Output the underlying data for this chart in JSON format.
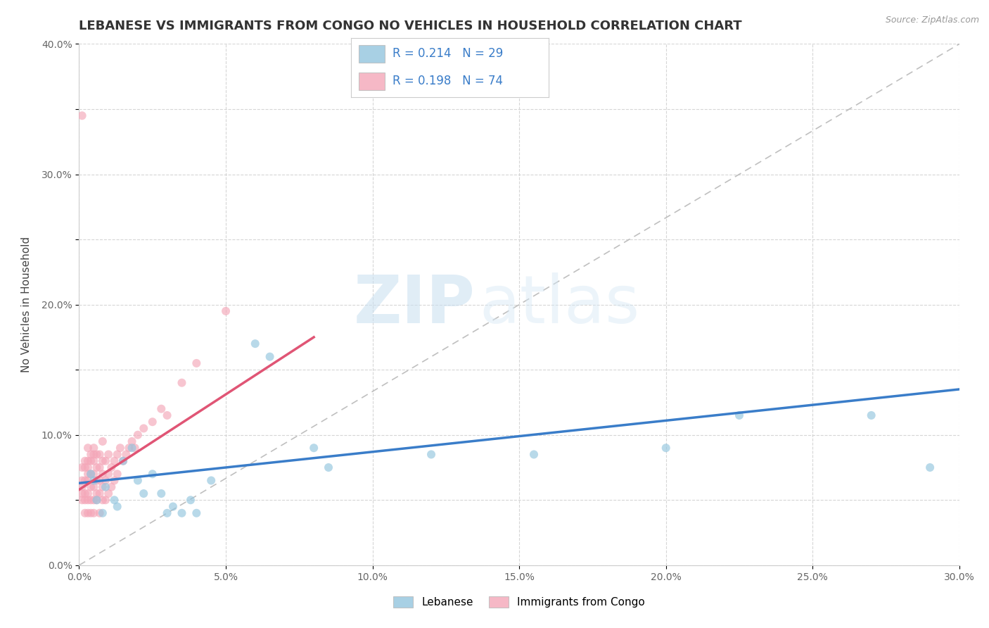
{
  "title": "LEBANESE VS IMMIGRANTS FROM CONGO NO VEHICLES IN HOUSEHOLD CORRELATION CHART",
  "source": "Source: ZipAtlas.com",
  "ylabel": "No Vehicles in Household",
  "xlim": [
    0.0,
    0.3
  ],
  "ylim": [
    0.0,
    0.4
  ],
  "xticks": [
    0.0,
    0.05,
    0.1,
    0.15,
    0.2,
    0.25,
    0.3
  ],
  "yticks": [
    0.0,
    0.05,
    0.1,
    0.15,
    0.2,
    0.25,
    0.3,
    0.35,
    0.4
  ],
  "xtick_labels": [
    "0.0%",
    "5.0%",
    "10.0%",
    "15.0%",
    "20.0%",
    "25.0%",
    "30.0%"
  ],
  "ytick_labels": [
    "0.0%",
    "",
    "10.0%",
    "",
    "20.0%",
    "",
    "30.0%",
    "",
    "40.0%"
  ],
  "grid_color": "#cccccc",
  "background_color": "#ffffff",
  "legend_label_blue": "Lebanese",
  "legend_label_pink": "Immigrants from Congo",
  "R_blue": 0.214,
  "N_blue": 29,
  "R_pink": 0.198,
  "N_pink": 74,
  "blue_color": "#92c5de",
  "pink_color": "#f4a6b8",
  "blue_line_color": "#3a7dc9",
  "pink_line_color": "#e05575",
  "watermark_zip": "ZIP",
  "watermark_atlas": "atlas",
  "title_fontsize": 13,
  "axis_label_fontsize": 11,
  "tick_fontsize": 10,
  "scatter_alpha": 0.65,
  "scatter_size": 75,
  "blue_scatter_x": [
    0.004,
    0.005,
    0.006,
    0.008,
    0.009,
    0.012,
    0.013,
    0.015,
    0.018,
    0.02,
    0.022,
    0.025,
    0.028,
    0.03,
    0.032,
    0.035,
    0.038,
    0.04,
    0.045,
    0.06,
    0.065,
    0.08,
    0.085,
    0.12,
    0.155,
    0.2,
    0.225,
    0.27,
    0.29
  ],
  "blue_scatter_y": [
    0.07,
    0.065,
    0.05,
    0.04,
    0.06,
    0.05,
    0.045,
    0.08,
    0.09,
    0.065,
    0.055,
    0.07,
    0.055,
    0.04,
    0.045,
    0.04,
    0.05,
    0.04,
    0.065,
    0.17,
    0.16,
    0.09,
    0.075,
    0.085,
    0.085,
    0.09,
    0.115,
    0.115,
    0.075
  ],
  "pink_scatter_x": [
    0.001,
    0.001,
    0.001,
    0.001,
    0.001,
    0.002,
    0.002,
    0.002,
    0.002,
    0.002,
    0.002,
    0.003,
    0.003,
    0.003,
    0.003,
    0.003,
    0.003,
    0.003,
    0.003,
    0.004,
    0.004,
    0.004,
    0.004,
    0.004,
    0.004,
    0.005,
    0.005,
    0.005,
    0.005,
    0.005,
    0.005,
    0.005,
    0.006,
    0.006,
    0.006,
    0.006,
    0.006,
    0.007,
    0.007,
    0.007,
    0.007,
    0.007,
    0.008,
    0.008,
    0.008,
    0.008,
    0.008,
    0.009,
    0.009,
    0.009,
    0.01,
    0.01,
    0.01,
    0.011,
    0.011,
    0.012,
    0.012,
    0.013,
    0.013,
    0.014,
    0.015,
    0.016,
    0.017,
    0.018,
    0.019,
    0.02,
    0.022,
    0.025,
    0.028,
    0.03,
    0.035,
    0.04,
    0.05,
    0.001
  ],
  "pink_scatter_y": [
    0.05,
    0.055,
    0.06,
    0.065,
    0.075,
    0.04,
    0.05,
    0.055,
    0.065,
    0.075,
    0.08,
    0.04,
    0.05,
    0.055,
    0.065,
    0.07,
    0.075,
    0.08,
    0.09,
    0.04,
    0.05,
    0.06,
    0.07,
    0.08,
    0.085,
    0.04,
    0.05,
    0.06,
    0.07,
    0.08,
    0.085,
    0.09,
    0.05,
    0.055,
    0.065,
    0.075,
    0.085,
    0.04,
    0.055,
    0.065,
    0.075,
    0.085,
    0.05,
    0.06,
    0.07,
    0.08,
    0.095,
    0.05,
    0.065,
    0.08,
    0.055,
    0.07,
    0.085,
    0.06,
    0.075,
    0.065,
    0.08,
    0.07,
    0.085,
    0.09,
    0.08,
    0.085,
    0.09,
    0.095,
    0.09,
    0.1,
    0.105,
    0.11,
    0.12,
    0.115,
    0.14,
    0.155,
    0.195,
    0.345
  ],
  "blue_line_x": [
    0.0,
    0.3
  ],
  "blue_line_y": [
    0.063,
    0.135
  ],
  "pink_line_x": [
    0.0,
    0.08
  ],
  "pink_line_y": [
    0.058,
    0.175
  ],
  "diag_line_x": [
    0.0,
    0.3
  ],
  "diag_line_y": [
    0.0,
    0.4
  ]
}
